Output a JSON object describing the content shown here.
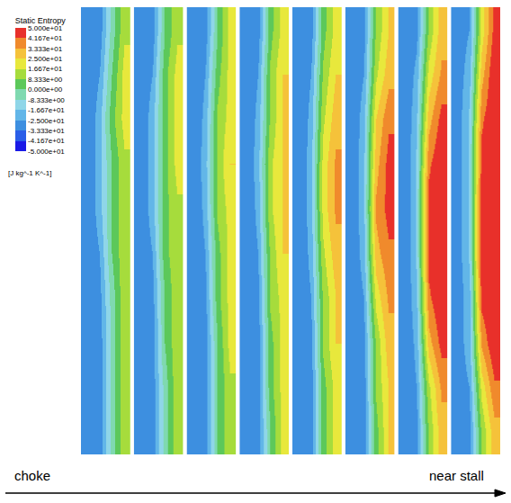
{
  "chart_data": {
    "type": "heatmap",
    "colorbar_title": "Static Entropy",
    "colorbar_unit": "[J kg^-1 K^-1]",
    "zlim": [
      -50,
      50
    ],
    "zticks": [
      {
        "value": 50,
        "label": "5.000e+01"
      },
      {
        "value": 41.67,
        "label": "4.167e+01"
      },
      {
        "value": 33.33,
        "label": "3.333e+01"
      },
      {
        "value": 25,
        "label": "2.500e+01"
      },
      {
        "value": 16.67,
        "label": "1.667e+01"
      },
      {
        "value": 8.333,
        "label": "8.333e+00"
      },
      {
        "value": 0,
        "label": "0.000e+00"
      },
      {
        "value": -8.333,
        "label": "-8.333e+00"
      },
      {
        "value": -16.67,
        "label": "-1.667e+01"
      },
      {
        "value": -25,
        "label": "-2.500e+01"
      },
      {
        "value": -33.33,
        "label": "-3.333e+01"
      },
      {
        "value": -41.67,
        "label": "-4.167e+01"
      },
      {
        "value": -50,
        "label": "-5.000e+01"
      }
    ],
    "colors": [
      "#1a1ae6",
      "#2a5ee8",
      "#3d8fe0",
      "#62b6e8",
      "#8fd6e8",
      "#7fd9b0",
      "#5cc85a",
      "#a6dc3c",
      "#e8e83c",
      "#f5c23a",
      "#f08a2c",
      "#e8302a"
    ],
    "tick_labels": false,
    "annotations": [
      "choke",
      "near stall"
    ],
    "panels": [
      {
        "cells": [
          [
            -33,
            -30,
            -5,
            15
          ],
          [
            -33,
            -25,
            0,
            20
          ],
          [
            -33,
            -20,
            5,
            20
          ],
          [
            -33,
            -20,
            0,
            15
          ],
          [
            -33,
            -20,
            0,
            15
          ],
          [
            -33,
            -25,
            0,
            15
          ],
          [
            -33,
            -28,
            -5,
            15
          ],
          [
            -33,
            -30,
            -5,
            15
          ],
          [
            -33,
            -30,
            -5,
            15
          ],
          [
            -33,
            -30,
            -5,
            15
          ]
        ]
      },
      {
        "cells": [
          [
            -33,
            -30,
            0,
            15
          ],
          [
            -33,
            -25,
            5,
            20
          ],
          [
            -33,
            -20,
            5,
            20
          ],
          [
            -33,
            -20,
            5,
            20
          ],
          [
            -33,
            -20,
            5,
            15
          ],
          [
            -33,
            -25,
            5,
            15
          ],
          [
            -33,
            -28,
            0,
            15
          ],
          [
            -33,
            -30,
            0,
            15
          ],
          [
            -33,
            -30,
            -5,
            15
          ],
          [
            -33,
            -30,
            -5,
            15
          ]
        ]
      },
      {
        "cells": [
          [
            -33,
            -30,
            0,
            20
          ],
          [
            -33,
            -25,
            5,
            20
          ],
          [
            -33,
            -22,
            10,
            20
          ],
          [
            -33,
            -20,
            10,
            25
          ],
          [
            -33,
            -22,
            10,
            20
          ],
          [
            -33,
            -25,
            5,
            20
          ],
          [
            -33,
            -28,
            5,
            20
          ],
          [
            -33,
            -30,
            0,
            20
          ],
          [
            -33,
            -30,
            0,
            15
          ],
          [
            -33,
            -30,
            0,
            15
          ]
        ]
      },
      {
        "cells": [
          [
            -33,
            -30,
            5,
            20
          ],
          [
            -33,
            -25,
            10,
            25
          ],
          [
            -33,
            -22,
            10,
            25
          ],
          [
            -33,
            -20,
            15,
            25
          ],
          [
            -33,
            -22,
            15,
            25
          ],
          [
            -33,
            -25,
            10,
            25
          ],
          [
            -33,
            -28,
            10,
            20
          ],
          [
            -33,
            -30,
            5,
            20
          ],
          [
            -33,
            -30,
            5,
            20
          ],
          [
            -33,
            -30,
            0,
            20
          ]
        ]
      },
      {
        "cells": [
          [
            -33,
            -30,
            5,
            20
          ],
          [
            -33,
            -25,
            10,
            25
          ],
          [
            -33,
            -22,
            15,
            30
          ],
          [
            -33,
            -20,
            20,
            35
          ],
          [
            -33,
            -20,
            20,
            35
          ],
          [
            -33,
            -22,
            15,
            30
          ],
          [
            -33,
            -25,
            10,
            25
          ],
          [
            -33,
            -28,
            10,
            25
          ],
          [
            -33,
            -30,
            5,
            20
          ],
          [
            -33,
            -30,
            5,
            20
          ]
        ]
      },
      {
        "cells": [
          [
            -33,
            -28,
            10,
            25
          ],
          [
            -33,
            -25,
            15,
            30
          ],
          [
            -33,
            -20,
            25,
            40
          ],
          [
            -33,
            -18,
            30,
            45
          ],
          [
            -33,
            -18,
            35,
            45
          ],
          [
            -33,
            -20,
            30,
            40
          ],
          [
            -33,
            -25,
            20,
            35
          ],
          [
            -33,
            -28,
            10,
            30
          ],
          [
            -33,
            -30,
            10,
            25
          ],
          [
            -33,
            -30,
            5,
            25
          ]
        ]
      },
      {
        "cells": [
          [
            -33,
            -28,
            10,
            30
          ],
          [
            -33,
            -22,
            20,
            35
          ],
          [
            -33,
            -18,
            30,
            45
          ],
          [
            -33,
            -15,
            40,
            50
          ],
          [
            -33,
            -15,
            45,
            50
          ],
          [
            -33,
            -15,
            45,
            50
          ],
          [
            -33,
            -18,
            40,
            50
          ],
          [
            -33,
            -22,
            30,
            45
          ],
          [
            -33,
            -25,
            15,
            35
          ],
          [
            -33,
            -28,
            10,
            30
          ]
        ]
      },
      {
        "cells": [
          [
            -30,
            -25,
            20,
            45
          ],
          [
            -30,
            -20,
            30,
            50
          ],
          [
            -30,
            -15,
            40,
            50
          ],
          [
            -30,
            -15,
            45,
            50
          ],
          [
            -30,
            -15,
            50,
            50
          ],
          [
            -30,
            -15,
            50,
            50
          ],
          [
            -30,
            -20,
            45,
            50
          ],
          [
            -30,
            -20,
            35,
            50
          ],
          [
            -30,
            -25,
            20,
            40
          ],
          [
            -30,
            -28,
            10,
            30
          ]
        ]
      }
    ]
  }
}
